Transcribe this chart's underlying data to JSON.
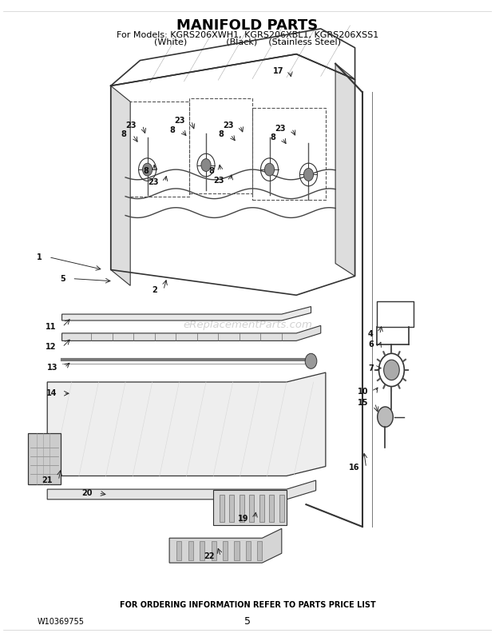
{
  "title": "MANIFOLD PARTS",
  "subtitle_line1": "For Models: KGRS206XWH1, KGRS206XBL1, KGRS206XSS1",
  "subtitle_line2": "(White)              (Black)    (Stainless Steel)",
  "footer_text": "FOR ORDERING INFORMATION REFER TO PARTS PRICE LIST",
  "part_number": "W10369755",
  "page_number": "5",
  "bg_color": "#ffffff",
  "text_color": "#000000",
  "title_fontsize": 13,
  "subtitle_fontsize": 8,
  "footer_fontsize": 7,
  "watermark_text": "eReplacementParts.com",
  "watermark_color": "#cccccc",
  "fig_width": 6.2,
  "fig_height": 8.02,
  "dpi": 100
}
